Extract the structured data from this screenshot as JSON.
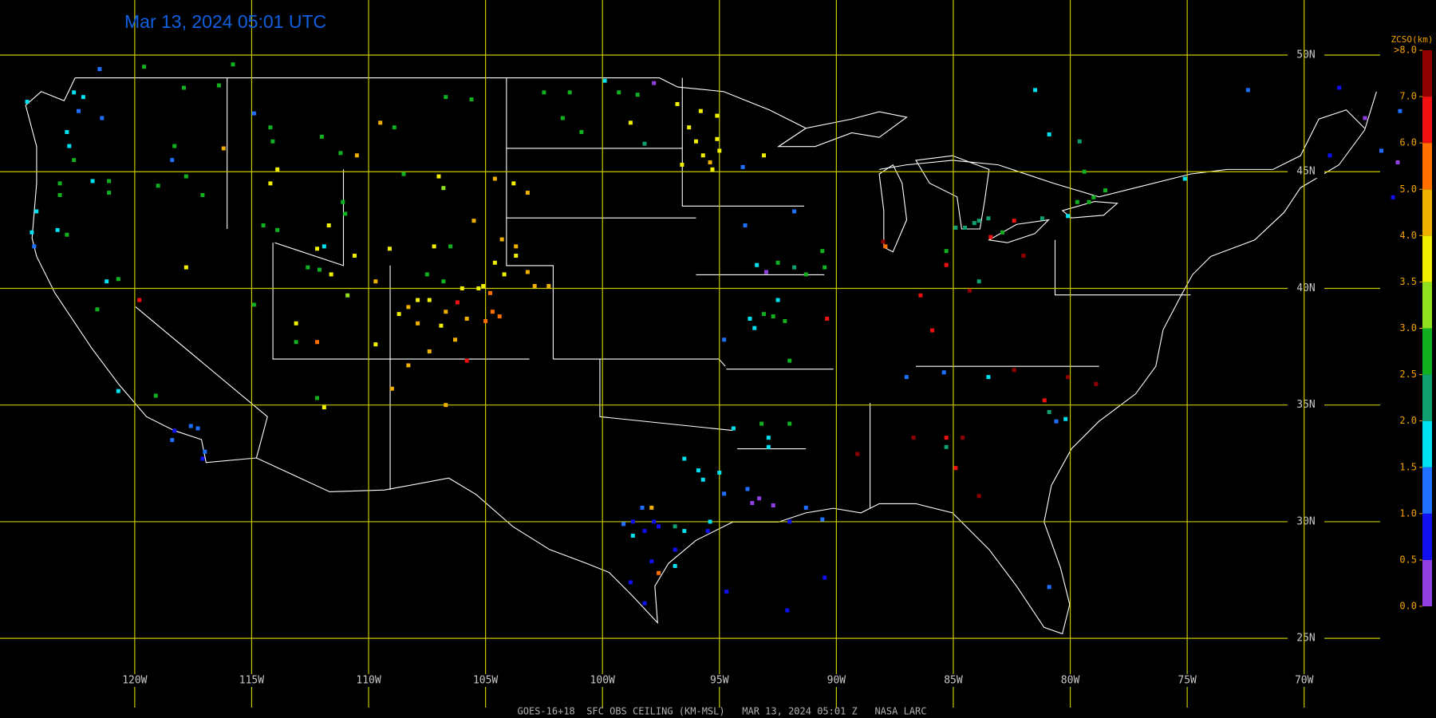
{
  "title": "Mar 13, 2024 05:01 UTC",
  "footer": "GOES-16+18  SFC OBS CEILING (KM-MSL)   MAR 13, 2024 05:01 Z   NASA LARC",
  "map": {
    "xlim": [
      -125.76,
      -66.75
    ],
    "ylim": [
      22.03,
      52.36
    ],
    "grid_color": "#c8c800",
    "lat_lines": [
      {
        "value": 50,
        "label": "50N"
      },
      {
        "value": 45,
        "label": "45N"
      },
      {
        "value": 40,
        "label": "40N"
      },
      {
        "value": 35,
        "label": "35N"
      },
      {
        "value": 30,
        "label": "30N"
      },
      {
        "value": 25,
        "label": "25N"
      }
    ],
    "lon_lines": [
      {
        "value": -120,
        "label": "120W"
      },
      {
        "value": -115,
        "label": "115W"
      },
      {
        "value": -110,
        "label": "110W"
      },
      {
        "value": -105,
        "label": "105W"
      },
      {
        "value": -100,
        "label": "100W"
      },
      {
        "value": -95,
        "label": "95W"
      },
      {
        "value": -90,
        "label": "90W"
      },
      {
        "value": -85,
        "label": "85W"
      },
      {
        "value": -80,
        "label": "80W"
      },
      {
        "value": -75,
        "label": "75W"
      },
      {
        "value": -70,
        "label": "70W"
      }
    ]
  },
  "colorbar": {
    "title": "ZCSO(km)",
    "ticks": [
      {
        "value": 0,
        "label": "0.0"
      },
      {
        "value": 0.5,
        "label": "0.5"
      },
      {
        "value": 1,
        "label": "1.0"
      },
      {
        "value": 1.5,
        "label": "1.5"
      },
      {
        "value": 2,
        "label": "2.0"
      },
      {
        "value": 2.5,
        "label": "2.5"
      },
      {
        "value": 3,
        "label": "3.0"
      },
      {
        "value": 3.5,
        "label": "3.5"
      },
      {
        "value": 4,
        "label": "4.0"
      },
      {
        "value": 5,
        "label": "5.0"
      },
      {
        "value": 6,
        "label": "6.0"
      },
      {
        "value": 7,
        "label": "7.0"
      },
      {
        "value": 8,
        "label": ">8.0"
      }
    ],
    "colors": [
      "#9040e0",
      "#1010f0",
      "#2070ff",
      "#00e0f0",
      "#10a070",
      "#10b020",
      "#90e020",
      "#f0f000",
      "#f0b000",
      "#ff7000",
      "#f01010",
      "#900000"
    ]
  },
  "stations": [
    [
      -121.5,
      49.4,
      1.2
    ],
    [
      -119.6,
      49.5,
      2.8
    ],
    [
      -115.8,
      49.6,
      2.8
    ],
    [
      -117.9,
      48.6,
      2.8
    ],
    [
      -116.4,
      48.7,
      2.8
    ],
    [
      -122.6,
      48.4,
      1.8
    ],
    [
      -122.2,
      48.2,
      1.8
    ],
    [
      -122.4,
      47.6,
      1.2
    ],
    [
      -121.4,
      47.3,
      1.2
    ],
    [
      -124.6,
      48.0,
      1.8
    ],
    [
      -122.9,
      46.7,
      1.8
    ],
    [
      -122.8,
      46.1,
      1.8
    ],
    [
      -122.6,
      45.5,
      2.8
    ],
    [
      -118.3,
      46.1,
      2.8
    ],
    [
      -118.4,
      45.5,
      1.2
    ],
    [
      -121.1,
      44.6,
      2.8
    ],
    [
      -121.1,
      44.1,
      2.8
    ],
    [
      -121.8,
      44.6,
      1.8
    ],
    [
      -123.2,
      44.5,
      2.8
    ],
    [
      -123.2,
      44.0,
      2.8
    ],
    [
      -124.2,
      43.3,
      1.8
    ],
    [
      -124.4,
      42.4,
      1.8
    ],
    [
      -124.3,
      41.8,
      1.2
    ],
    [
      -123.3,
      42.5,
      1.8
    ],
    [
      -122.9,
      42.3,
      2.8
    ],
    [
      -120.7,
      40.4,
      2.8
    ],
    [
      -121.2,
      40.3,
      1.8
    ],
    [
      -121.6,
      39.1,
      2.8
    ],
    [
      -119.8,
      39.5,
      6.5
    ],
    [
      -117.1,
      44.0,
      2.8
    ],
    [
      -116.2,
      46.0,
      4.5
    ],
    [
      -117.8,
      44.8,
      2.8
    ],
    [
      -119.0,
      44.4,
      2.8
    ],
    [
      -114.9,
      47.5,
      1.2
    ],
    [
      -114.2,
      46.9,
      2.8
    ],
    [
      -114.1,
      46.3,
      2.8
    ],
    [
      -111.2,
      45.8,
      2.8
    ],
    [
      -112.0,
      46.5,
      2.8
    ],
    [
      -110.5,
      45.7,
      4.5
    ],
    [
      -109.5,
      47.1,
      4.5
    ],
    [
      -108.9,
      46.9,
      2.8
    ],
    [
      -106.7,
      48.2,
      2.8
    ],
    [
      -105.6,
      48.1,
      2.8
    ],
    [
      -108.5,
      44.9,
      2.8
    ],
    [
      -114.2,
      44.5,
      3.8
    ],
    [
      -113.9,
      45.1,
      3.8
    ],
    [
      -114.5,
      42.7,
      2.8
    ],
    [
      -113.9,
      42.5,
      2.8
    ],
    [
      -111.1,
      43.7,
      2.8
    ],
    [
      -111.0,
      43.2,
      2.8
    ],
    [
      -111.7,
      42.7,
      3.8
    ],
    [
      -102.5,
      48.4,
      2.8
    ],
    [
      -101.4,
      48.4,
      2.8
    ],
    [
      -99.9,
      48.9,
      1.8
    ],
    [
      -99.3,
      48.4,
      2.8
    ],
    [
      -98.5,
      48.3,
      2.8
    ],
    [
      -97.8,
      48.8,
      0.3
    ],
    [
      -96.8,
      47.9,
      3.8
    ],
    [
      -95.8,
      47.6,
      3.8
    ],
    [
      -96.3,
      46.9,
      3.8
    ],
    [
      -96.0,
      46.3,
      3.8
    ],
    [
      -95.1,
      46.4,
      3.8
    ],
    [
      -95.1,
      47.4,
      3.8
    ],
    [
      -95.0,
      45.9,
      3.8
    ],
    [
      -95.4,
      45.4,
      4.5
    ],
    [
      -95.3,
      45.1,
      3.8
    ],
    [
      -96.6,
      45.3,
      3.8
    ],
    [
      -95.7,
      45.7,
      3.8
    ],
    [
      -94.0,
      45.2,
      1.2
    ],
    [
      -93.1,
      45.7,
      3.8
    ],
    [
      -98.8,
      47.1,
      3.8
    ],
    [
      -100.9,
      46.7,
      2.8
    ],
    [
      -101.7,
      47.3,
      2.8
    ],
    [
      -98.2,
      46.2,
      2.3
    ],
    [
      -107.0,
      44.8,
      3.8
    ],
    [
      -106.8,
      44.3,
      3.2
    ],
    [
      -104.6,
      44.7,
      4.5
    ],
    [
      -103.8,
      44.5,
      3.8
    ],
    [
      -103.2,
      44.1,
      4.5
    ],
    [
      -105.5,
      42.9,
      4.5
    ],
    [
      -104.3,
      42.1,
      4.5
    ],
    [
      -103.7,
      41.8,
      4.5
    ],
    [
      -103.7,
      41.4,
      3.8
    ],
    [
      -104.6,
      41.1,
      3.8
    ],
    [
      -104.2,
      40.6,
      3.8
    ],
    [
      -103.2,
      40.7,
      4.5
    ],
    [
      -102.9,
      40.1,
      4.5
    ],
    [
      -102.3,
      40.1,
      4.5
    ],
    [
      -105.1,
      40.1,
      3.8
    ],
    [
      -105.3,
      40.0,
      3.8
    ],
    [
      -104.8,
      39.8,
      5.5
    ],
    [
      -104.7,
      39.0,
      5.5
    ],
    [
      -104.4,
      38.8,
      5.5
    ],
    [
      -105.0,
      38.6,
      5.5
    ],
    [
      -106.2,
      39.4,
      6.5
    ],
    [
      -106.7,
      39.0,
      4.5
    ],
    [
      -107.4,
      39.5,
      3.8
    ],
    [
      -107.9,
      39.5,
      3.8
    ],
    [
      -108.3,
      39.2,
      4.5
    ],
    [
      -108.7,
      38.9,
      3.8
    ],
    [
      -109.7,
      40.3,
      4.5
    ],
    [
      -109.1,
      41.7,
      3.8
    ],
    [
      -107.2,
      41.8,
      3.8
    ],
    [
      -106.5,
      41.8,
      2.8
    ],
    [
      -107.5,
      40.6,
      2.8
    ],
    [
      -106.8,
      40.3,
      2.8
    ],
    [
      -106.0,
      40.0,
      3.8
    ],
    [
      -105.8,
      38.7,
      4.5
    ],
    [
      -107.9,
      38.5,
      4.5
    ],
    [
      -106.9,
      38.4,
      3.8
    ],
    [
      -105.8,
      36.9,
      6.5
    ],
    [
      -106.3,
      37.8,
      4.5
    ],
    [
      -107.4,
      37.3,
      4.5
    ],
    [
      -109.7,
      37.6,
      3.8
    ],
    [
      -109.0,
      35.7,
      4.5
    ],
    [
      -106.7,
      35.0,
      4.5
    ],
    [
      -108.3,
      36.7,
      4.5
    ],
    [
      -110.6,
      41.4,
      3.8
    ],
    [
      -112.2,
      41.7,
      3.8
    ],
    [
      -111.9,
      41.8,
      1.8
    ],
    [
      -112.1,
      40.8,
      2.8
    ],
    [
      -112.6,
      40.9,
      2.8
    ],
    [
      -111.6,
      40.6,
      3.8
    ],
    [
      -110.9,
      39.7,
      3.2
    ],
    [
      -113.1,
      38.5,
      3.8
    ],
    [
      -112.2,
      37.7,
      5.5
    ],
    [
      -113.1,
      37.7,
      2.8
    ],
    [
      -114.9,
      39.3,
      2.8
    ],
    [
      -117.8,
      40.9,
      3.8
    ],
    [
      -111.9,
      34.9,
      3.8
    ],
    [
      -112.2,
      35.3,
      2.8
    ],
    [
      -120.7,
      35.6,
      1.8
    ],
    [
      -119.1,
      35.4,
      2.8
    ],
    [
      -118.3,
      33.9,
      0.8
    ],
    [
      -117.6,
      34.1,
      1.2
    ],
    [
      -117.3,
      34.0,
      1.2
    ],
    [
      -117.1,
      32.7,
      0.8
    ],
    [
      -118.4,
      33.5,
      1.2
    ],
    [
      -117.0,
      33.0,
      1.2
    ],
    [
      -93.9,
      42.7,
      1.2
    ],
    [
      -91.8,
      43.3,
      1.2
    ],
    [
      -93.4,
      41.0,
      1.8
    ],
    [
      -92.5,
      41.1,
      2.8
    ],
    [
      -91.8,
      40.9,
      2.3
    ],
    [
      -90.6,
      41.6,
      2.8
    ],
    [
      -91.3,
      40.6,
      2.8
    ],
    [
      -90.5,
      40.9,
      2.8
    ],
    [
      -92.5,
      39.5,
      1.8
    ],
    [
      -93.1,
      38.9,
      2.8
    ],
    [
      -93.7,
      38.7,
      1.8
    ],
    [
      -93.5,
      38.3,
      1.8
    ],
    [
      -92.2,
      38.6,
      2.8
    ],
    [
      -92.7,
      38.8,
      2.8
    ],
    [
      -94.8,
      37.8,
      1.2
    ],
    [
      -92.0,
      36.9,
      2.8
    ],
    [
      -90.4,
      38.7,
      6.5
    ],
    [
      -93.0,
      40.7,
      0.3
    ],
    [
      -94.4,
      34.0,
      1.8
    ],
    [
      -93.2,
      34.2,
      2.8
    ],
    [
      -92.0,
      34.2,
      2.8
    ],
    [
      -92.9,
      33.6,
      1.8
    ],
    [
      -92.9,
      33.2,
      1.8
    ],
    [
      -96.5,
      32.7,
      1.8
    ],
    [
      -95.9,
      32.2,
      1.8
    ],
    [
      -95.7,
      31.8,
      1.8
    ],
    [
      -95.0,
      32.1,
      1.8
    ],
    [
      -94.8,
      31.2,
      1.2
    ],
    [
      -93.8,
      31.4,
      1.2
    ],
    [
      -97.9,
      30.6,
      4.5
    ],
    [
      -98.3,
      30.6,
      1.2
    ],
    [
      -97.8,
      30.0,
      0.8
    ],
    [
      -98.7,
      30.0,
      0.8
    ],
    [
      -98.2,
      29.6,
      0.8
    ],
    [
      -99.1,
      29.9,
      1.2
    ],
    [
      -98.7,
      29.4,
      1.8
    ],
    [
      -97.6,
      29.8,
      0.8
    ],
    [
      -96.9,
      29.8,
      2.3
    ],
    [
      -96.5,
      29.6,
      1.8
    ],
    [
      -95.4,
      30.0,
      1.8
    ],
    [
      -95.5,
      29.6,
      0.8
    ],
    [
      -96.9,
      28.8,
      0.8
    ],
    [
      -97.9,
      28.3,
      0.8
    ],
    [
      -96.9,
      28.1,
      1.8
    ],
    [
      -97.6,
      27.8,
      5.5
    ],
    [
      -98.8,
      27.4,
      0.8
    ],
    [
      -98.2,
      26.5,
      0.8
    ],
    [
      -94.7,
      27.0,
      0.8
    ],
    [
      -92.1,
      26.2,
      0.8
    ],
    [
      -90.5,
      27.6,
      0.8
    ],
    [
      -91.3,
      30.6,
      1.2
    ],
    [
      -92.0,
      30.0,
      0.8
    ],
    [
      -93.3,
      31.0,
      0.3
    ],
    [
      -92.7,
      30.7,
      0.3
    ],
    [
      -93.6,
      30.8,
      0.3
    ],
    [
      -90.6,
      30.1,
      1.2
    ],
    [
      -88.0,
      42.0,
      7.5
    ],
    [
      -87.9,
      41.8,
      5.5
    ],
    [
      -85.3,
      41.0,
      6.5
    ],
    [
      -86.4,
      39.7,
      6.5
    ],
    [
      -85.9,
      38.2,
      6.5
    ],
    [
      -85.3,
      41.6,
      2.8
    ],
    [
      -84.9,
      42.6,
      2.3
    ],
    [
      -84.5,
      42.6,
      2.3
    ],
    [
      -84.1,
      42.8,
      2.3
    ],
    [
      -83.9,
      42.9,
      2.3
    ],
    [
      -83.5,
      43.0,
      2.3
    ],
    [
      -83.4,
      42.2,
      6.5
    ],
    [
      -82.9,
      42.4,
      2.8
    ],
    [
      -82.4,
      42.9,
      6.5
    ],
    [
      -82.0,
      41.4,
      7.5
    ],
    [
      -83.9,
      40.3,
      2.3
    ],
    [
      -84.3,
      39.9,
      7.5
    ],
    [
      -87.0,
      36.2,
      1.2
    ],
    [
      -85.4,
      36.4,
      1.2
    ],
    [
      -83.5,
      36.2,
      1.8
    ],
    [
      -82.4,
      36.5,
      7.5
    ],
    [
      -80.1,
      36.2,
      7.5
    ],
    [
      -78.9,
      35.9,
      7.5
    ],
    [
      -81.1,
      35.2,
      6.5
    ],
    [
      -80.9,
      34.7,
      2.3
    ],
    [
      -80.6,
      34.3,
      1.2
    ],
    [
      -80.2,
      34.4,
      1.8
    ],
    [
      -86.7,
      33.6,
      7.5
    ],
    [
      -85.3,
      33.2,
      2.3
    ],
    [
      -85.3,
      33.6,
      6.5
    ],
    [
      -84.6,
      33.6,
      7.5
    ],
    [
      -84.9,
      32.3,
      6.5
    ],
    [
      -83.9,
      31.1,
      7.5
    ],
    [
      -89.1,
      32.9,
      7.5
    ],
    [
      -80.9,
      27.2,
      1.2
    ],
    [
      -81.5,
      48.5,
      1.8
    ],
    [
      -80.9,
      46.6,
      1.8
    ],
    [
      -79.6,
      46.3,
      2.3
    ],
    [
      -79.4,
      45.0,
      2.8
    ],
    [
      -79.7,
      43.7,
      2.8
    ],
    [
      -79.2,
      43.7,
      2.8
    ],
    [
      -78.5,
      44.2,
      2.8
    ],
    [
      -79.0,
      43.9,
      2.8
    ],
    [
      -80.1,
      43.1,
      1.8
    ],
    [
      -81.2,
      43.0,
      2.3
    ],
    [
      -75.1,
      44.7,
      1.8
    ],
    [
      -72.4,
      48.5,
      1.2
    ],
    [
      -68.5,
      48.6,
      0.8
    ],
    [
      -67.4,
      47.3,
      0.3
    ],
    [
      -65.9,
      47.6,
      1.2
    ],
    [
      -66.7,
      45.9,
      1.2
    ],
    [
      -66.0,
      45.4,
      0.3
    ],
    [
      -66.2,
      43.9,
      0.8
    ],
    [
      -68.9,
      45.7,
      0.8
    ]
  ]
}
